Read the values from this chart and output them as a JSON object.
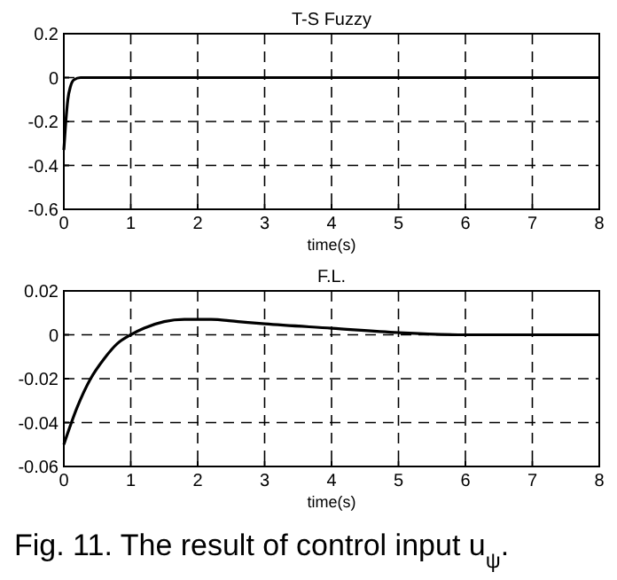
{
  "chart_data": [
    {
      "type": "line",
      "title": "T-S Fuzzy",
      "xlabel": "time(s)",
      "x": [
        0,
        0.03,
        0.06,
        0.1,
        0.15,
        0.25,
        1,
        3,
        8
      ],
      "series": [
        {
          "color": "#000000",
          "values": [
            -0.33,
            -0.2,
            -0.1,
            -0.04,
            -0.01,
            0,
            0,
            0,
            0
          ]
        }
      ],
      "xlim": [
        0,
        8
      ],
      "xticks": [
        0,
        1,
        2,
        3,
        4,
        5,
        6,
        7,
        8
      ],
      "ylim": [
        -0.6,
        0.2
      ],
      "yticks": [
        -0.6,
        -0.4,
        -0.2,
        0,
        0.2
      ],
      "grid": true,
      "line_style": "solid"
    },
    {
      "type": "line",
      "title": "F.L.",
      "xlabel": "time(s)",
      "x": [
        0,
        0.2,
        0.4,
        0.6,
        0.8,
        1,
        1.2,
        1.5,
        1.8,
        2.2,
        2.6,
        3,
        4,
        5,
        6,
        7,
        8
      ],
      "series": [
        {
          "color": "#000000",
          "values": [
            -0.05,
            -0.033,
            -0.02,
            -0.011,
            -0.004,
            0,
            0.003,
            0.006,
            0.007,
            0.007,
            0.006,
            0.005,
            0.003,
            0.001,
            0,
            0,
            0
          ]
        }
      ],
      "xlim": [
        0,
        8
      ],
      "xticks": [
        0,
        1,
        2,
        3,
        4,
        5,
        6,
        7,
        8
      ],
      "ylim": [
        -0.06,
        0.02
      ],
      "yticks": [
        -0.06,
        -0.04,
        -0.02,
        0,
        0.02
      ],
      "grid": true,
      "line_style": "solid",
      "annotations": [
        "Fig. 11. The result of control input u$_{ψ}$."
      ]
    }
  ]
}
